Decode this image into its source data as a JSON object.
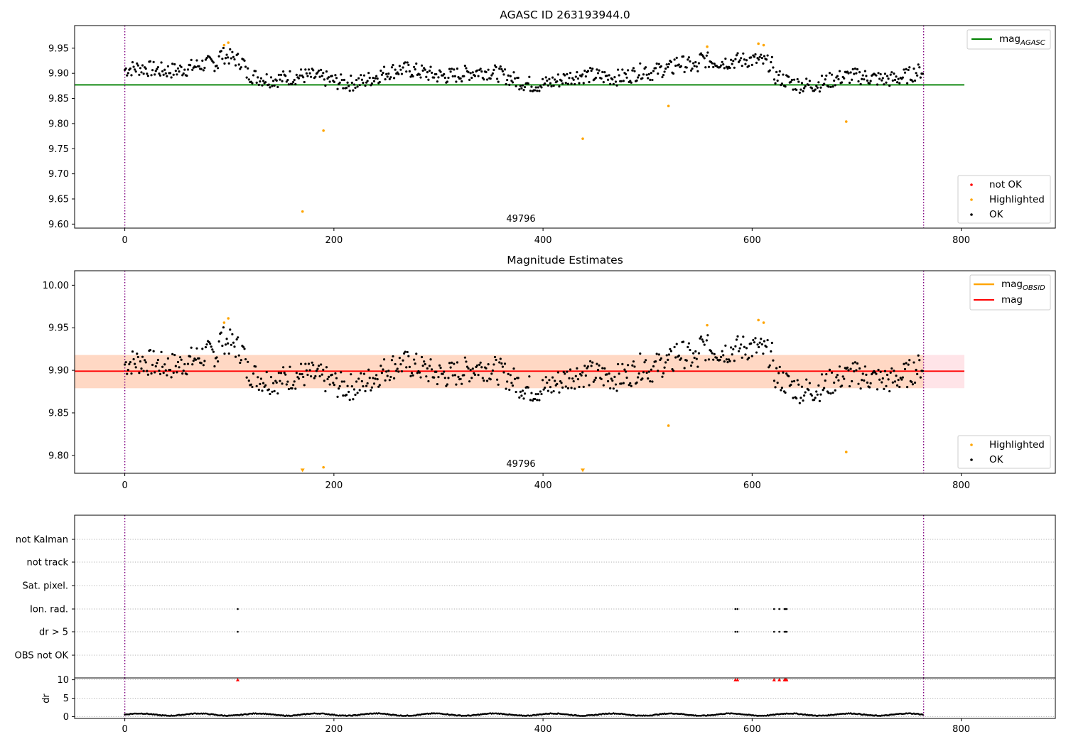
{
  "colors": {
    "ok": "#000000",
    "highlighted": "#ffa500",
    "not_ok": "#ff0000",
    "mag_agasc_line": "#008000",
    "mag_obsid_line": "#ffa500",
    "mag_line": "#ff0000",
    "band_outer": "#ffe4e8",
    "band_inner": "#ffd8c4",
    "boundary_line": "#800080",
    "grid": "#b0b0b0"
  },
  "chart_data": [
    {
      "type": "scatter",
      "title": "AGASC ID 263193944.0",
      "annotation": "49796",
      "xlim": [
        -48,
        890
      ],
      "ylim": [
        9.592,
        9.995
      ],
      "x_ticks": [
        0,
        200,
        400,
        600,
        800
      ],
      "x_tick_labels": [
        "0",
        "200",
        "400",
        "600",
        "800"
      ],
      "y_ticks": [
        9.6,
        9.65,
        9.7,
        9.75,
        9.8,
        9.85,
        9.9,
        9.95
      ],
      "y_tick_labels": [
        "9.60",
        "9.65",
        "9.70",
        "9.75",
        "9.80",
        "9.85",
        "9.90",
        "9.95"
      ],
      "boundaries": [
        0,
        764
      ],
      "reference_lines": [
        {
          "name": "mag",
          "sub": "AGASC",
          "y": 9.877,
          "x_range": [
            -48,
            803
          ],
          "color": "#008000"
        }
      ],
      "legend_top": [
        {
          "label": "mag",
          "sub": "AGASC",
          "color": "#008000"
        }
      ],
      "legend_bottom": [
        {
          "label": "not OK",
          "color": "#ff0000"
        },
        {
          "label": "Highlighted",
          "color": "#ffa500"
        },
        {
          "label": "OK",
          "color": "#000000"
        }
      ],
      "series": [
        {
          "name": "Highlighted",
          "color": "#ffa500",
          "points": [
            [
              95,
              9.956
            ],
            [
              99,
              9.961
            ],
            [
              170,
              9.625
            ],
            [
              190,
              9.786
            ],
            [
              438,
              9.77
            ],
            [
              520,
              9.835
            ],
            [
              557,
              9.953
            ],
            [
              606,
              9.959
            ],
            [
              611,
              9.956
            ],
            [
              690,
              9.804
            ]
          ]
        },
        {
          "name": "not OK",
          "color": "#ff0000",
          "points": []
        }
      ]
    },
    {
      "type": "scatter",
      "title": "Magnitude Estimates",
      "annotation": "49796",
      "xlim": [
        -48,
        890
      ],
      "ylim": [
        9.779,
        10.017
      ],
      "x_ticks": [
        0,
        200,
        400,
        600,
        800
      ],
      "x_tick_labels": [
        "0",
        "200",
        "400",
        "600",
        "800"
      ],
      "y_ticks": [
        9.8,
        9.85,
        9.9,
        9.95,
        10.0
      ],
      "y_tick_labels": [
        "9.80",
        "9.85",
        "9.90",
        "9.95",
        "10.00"
      ],
      "boundaries": [
        0,
        764
      ],
      "bands": [
        {
          "y_range": [
            9.879,
            9.918
          ],
          "x_range": [
            -48,
            803
          ],
          "color": "#ffe4e8"
        },
        {
          "y_range": [
            9.879,
            9.918
          ],
          "x_range": [
            -48,
            764
          ],
          "color": "#ffd8c4"
        }
      ],
      "reference_lines": [
        {
          "name": "mag",
          "y": 9.899,
          "x_range": [
            -48,
            803
          ],
          "color": "#ff0000"
        }
      ],
      "legend_top": [
        {
          "label": "mag",
          "sub": "OBSID",
          "color": "#ffa500"
        },
        {
          "label": "mag",
          "color": "#ff0000"
        }
      ],
      "legend_bottom": [
        {
          "label": "Highlighted",
          "color": "#ffa500"
        },
        {
          "label": "OK",
          "color": "#000000"
        }
      ],
      "series": [
        {
          "name": "Highlighted",
          "color": "#ffa500",
          "points": [
            [
              95,
              9.956
            ],
            [
              99,
              9.961
            ],
            [
              190,
              9.786
            ],
            [
              520,
              9.835
            ],
            [
              557,
              9.953
            ],
            [
              606,
              9.959
            ],
            [
              611,
              9.956
            ],
            [
              690,
              9.804
            ]
          ]
        },
        {
          "name": "Highlighted (below range)",
          "color": "#ffa500",
          "marker": "triangle-down",
          "points": [
            [
              170,
              9.782
            ],
            [
              438,
              9.782
            ]
          ]
        }
      ]
    },
    {
      "type": "scatter",
      "title": "",
      "xlim": [
        -48,
        890
      ],
      "categories": [
        "not Kalman",
        "not track",
        "Sat. pixel.",
        "Ion. rad.",
        "dr > 5",
        "OBS not OK"
      ],
      "boundaries": [
        0,
        764
      ],
      "flags": {
        "Ion. rad.": [
          108,
          584,
          586,
          621,
          626,
          631,
          632,
          633
        ],
        "dr > 5": [
          108,
          584,
          586,
          621,
          626,
          631,
          632,
          633
        ]
      }
    },
    {
      "type": "scatter",
      "title": "",
      "ylabel": "dr",
      "xlim": [
        -48,
        890
      ],
      "ylim": [
        -0.5,
        10.5
      ],
      "x_ticks": [
        0,
        200,
        400,
        600,
        800
      ],
      "x_tick_labels": [
        "0",
        "200",
        "400",
        "600",
        "800"
      ],
      "y_ticks": [
        0,
        5,
        10
      ],
      "y_tick_labels": [
        "0",
        "5",
        "10"
      ],
      "boundaries": [
        0,
        764
      ],
      "clipped_high": {
        "color": "#ff0000",
        "x": [
          108,
          584,
          586,
          621,
          626,
          631,
          632,
          633
        ]
      }
    }
  ]
}
